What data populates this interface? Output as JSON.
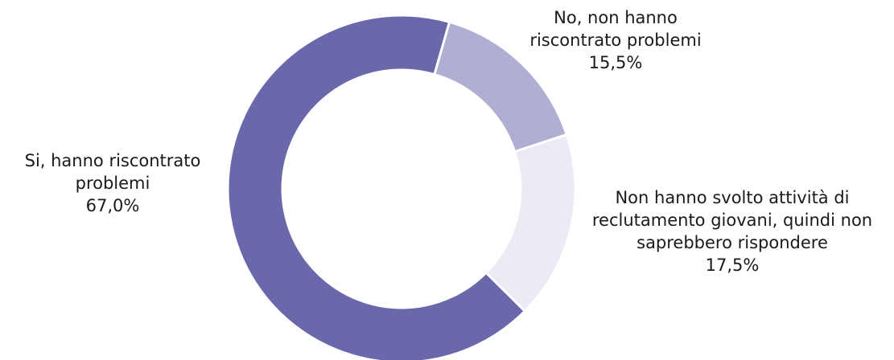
{
  "chart_data": {
    "type": "pie",
    "donut": true,
    "slices": [
      {
        "label_lines": [
          "No, non hanno",
          "riscontrato problemi"
        ],
        "value": 15.5,
        "value_label": "15,5%",
        "color": "#b0aed3"
      },
      {
        "label_lines": [
          "Non hanno svolto attività di",
          "reclutamento giovani, quindi non",
          "saprebbero rispondere"
        ],
        "value": 17.5,
        "value_label": "17,5%",
        "color": "#ebeaf5"
      },
      {
        "label_lines": [
          "Si, hanno riscontrato",
          "problemi"
        ],
        "value": 67.0,
        "value_label": "67,0%",
        "color": "#6b67ab"
      }
    ]
  }
}
